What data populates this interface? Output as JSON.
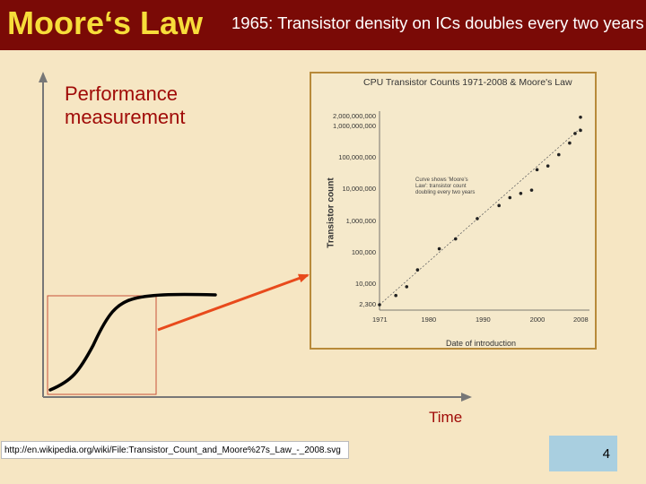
{
  "slide": {
    "title": "Moore‘s Law",
    "subtitle": "1965: Transistor density on ICs doubles every two years",
    "y_axis_label": "Performance\nmeasurement",
    "x_axis_label": "Time",
    "url": "http://en.wikipedia.org/wiki/File:Transistor_Count_and_Moore%27s_Law_-_2008.svg",
    "page_number": "4",
    "colors": {
      "header_bg": "#7a0a06",
      "title": "#f7dd3a",
      "background": "#f6e6c3",
      "accent_red": "#a00b08",
      "arrow": "#e84a1c",
      "page_box": "#a9cfe0"
    }
  },
  "chart_data": {
    "type": "scatter",
    "title": "CPU Transistor Counts 1971-2008 & Moore's Law",
    "xlabel": "Date of introduction",
    "ylabel": "Transistor count",
    "x_ticks": [
      "1971",
      "1980",
      "1990",
      "2000",
      "2008"
    ],
    "y_ticks": [
      "2,000,000,000",
      "1,000,000,000",
      "100,000,000",
      "10,000,000",
      "1,000,000",
      "100,000",
      "10,000",
      "2,300"
    ],
    "ylim": [
      2300,
      2000000000
    ],
    "scale": "log",
    "annotation": "Curve shows 'Moore's Law': transistor count doubling every two years",
    "points": [
      {
        "x": 1971,
        "y": 2300
      },
      {
        "x": 1974,
        "y": 4500
      },
      {
        "x": 1976,
        "y": 8500
      },
      {
        "x": 1978,
        "y": 29000
      },
      {
        "x": 1982,
        "y": 134000
      },
      {
        "x": 1985,
        "y": 275000
      },
      {
        "x": 1989,
        "y": 1200000
      },
      {
        "x": 1993,
        "y": 3100000
      },
      {
        "x": 1995,
        "y": 5500000
      },
      {
        "x": 1997,
        "y": 7500000
      },
      {
        "x": 1999,
        "y": 9500000
      },
      {
        "x": 2000,
        "y": 42000000
      },
      {
        "x": 2002,
        "y": 55000000
      },
      {
        "x": 2004,
        "y": 125000000
      },
      {
        "x": 2006,
        "y": 291000000
      },
      {
        "x": 2007,
        "y": 582000000
      },
      {
        "x": 2008,
        "y": 731000000
      },
      {
        "x": 2008,
        "y": 1900000000
      }
    ]
  }
}
